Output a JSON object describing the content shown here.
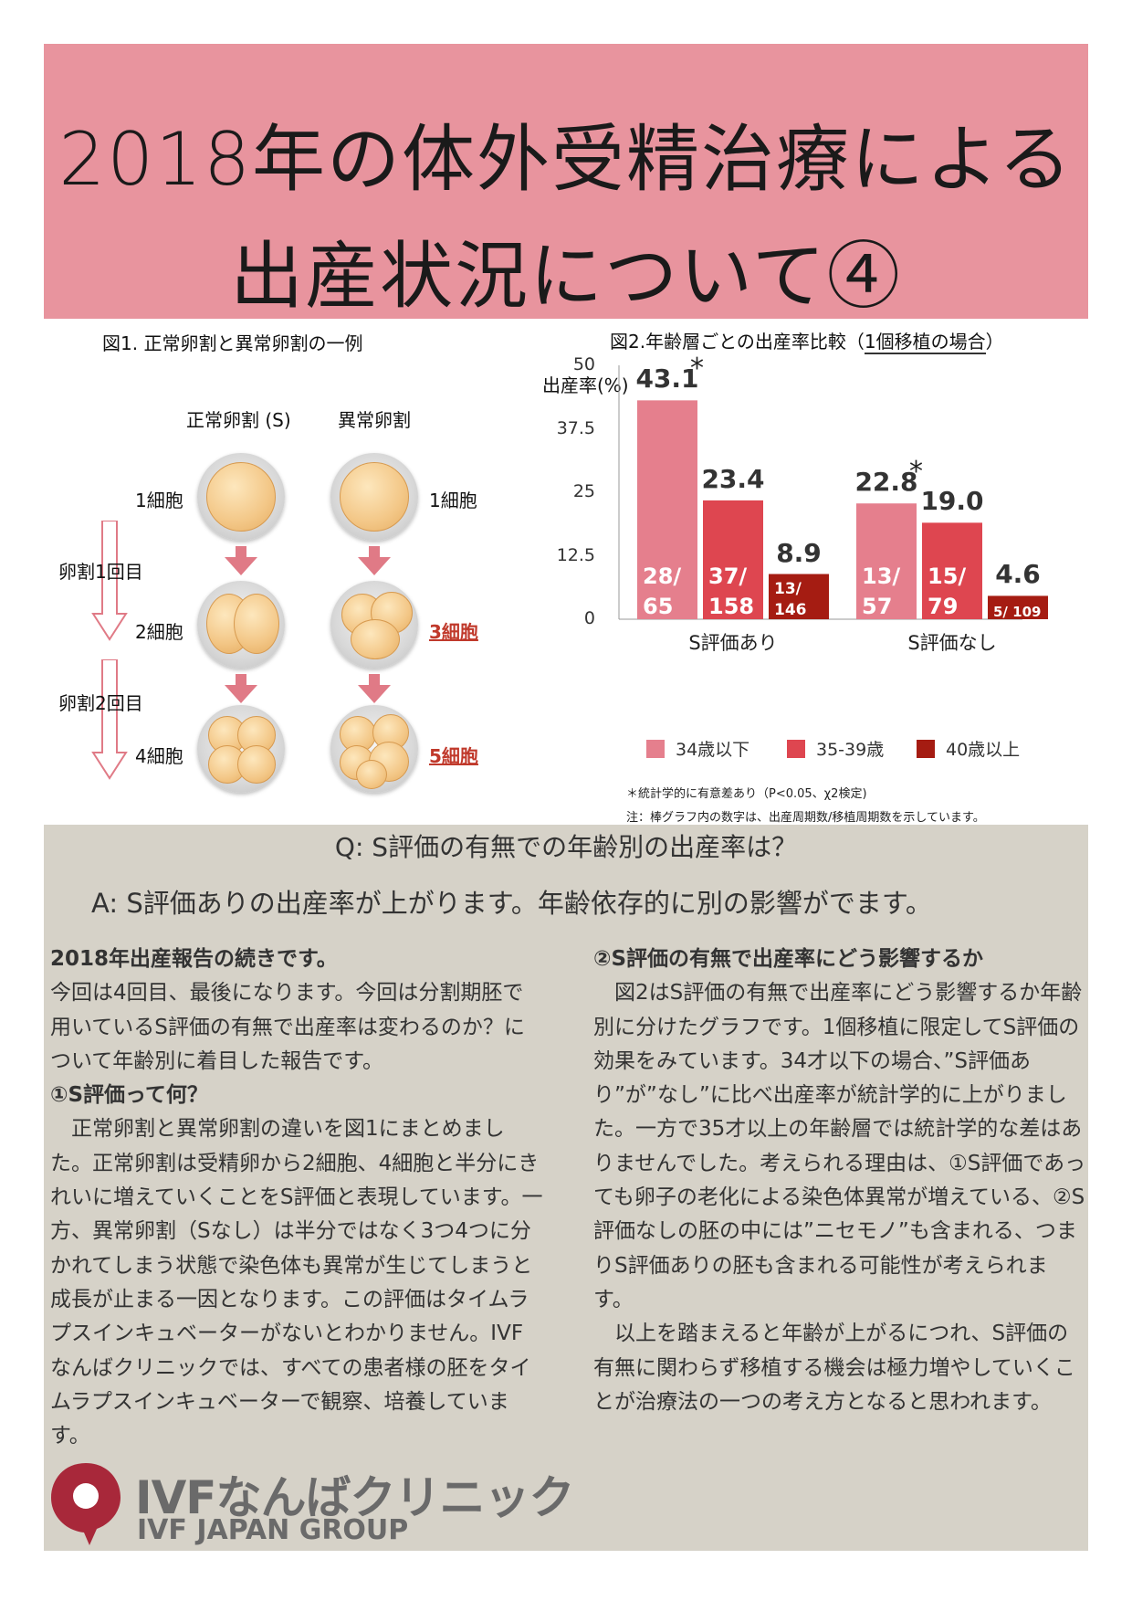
{
  "title": {
    "line1": "2018年の体外受精治療による",
    "line2": "出産状況について④"
  },
  "figure1": {
    "caption": "図1. 正常卵割と異常卵割の一例",
    "col_normal": "正常卵割 (S)",
    "col_abnormal": "異常卵割",
    "stage1_left": "1細胞",
    "stage1_right": "1細胞",
    "stage2_left": "2細胞",
    "stage2_right": "3細胞",
    "stage3_left": "4細胞",
    "stage3_right": "5細胞",
    "division1": "卵割1回目",
    "division2": "卵割2回目",
    "colors": {
      "arrow": "#e07a86",
      "cell": "#f3c787",
      "highlight": "#c0392b"
    }
  },
  "figure2": {
    "caption_prefix": "図2.年齢層ごとの出産率比較（",
    "caption_underlined": "1個移植の場合",
    "caption_suffix": "）",
    "note1": "＊統計学的に有意差あり（P<0.05、χ2検定)",
    "note2": "注：棒グラフ内の数字は、出産周期数/移植周期数を示しています。"
  },
  "chart_data": {
    "type": "bar",
    "ylabel": "出産率(%)",
    "ylim": [
      0,
      50
    ],
    "yticks": [
      "50",
      "37.5",
      "25",
      "12.5",
      "0"
    ],
    "categories": [
      "S評価あり",
      "S評価なし"
    ],
    "series": [
      {
        "name": "34歳以下",
        "color": "#e57f8d",
        "values": [
          43.1,
          22.8
        ],
        "labels": [
          "43.1",
          "22.8"
        ],
        "counts": [
          "28/\n65",
          "13/\n57"
        ],
        "significant": [
          true,
          true
        ]
      },
      {
        "name": "35-39歳",
        "color": "#de4650",
        "values": [
          23.4,
          19.0
        ],
        "labels": [
          "23.4",
          "19.0"
        ],
        "counts": [
          "37/\n158",
          "15/\n79"
        ],
        "significant": [
          false,
          false
        ]
      },
      {
        "name": "40歳以上",
        "color": "#a51c12",
        "values": [
          8.9,
          4.6
        ],
        "labels": [
          "8.9",
          "4.6"
        ],
        "counts": [
          "13/\n146",
          "5/ 109"
        ],
        "significant": [
          false,
          false
        ]
      }
    ],
    "significance_marker": "*",
    "grid": false,
    "legend_position": "bottom"
  },
  "qa": {
    "question": "Q: S評価の有無での年齢別の出産率は？",
    "answer": "A: S評価ありの出産率が上がります。年齢依存的に別の影響がでます。"
  },
  "left_column": {
    "heading": "2018年出産報告の続きです。",
    "para1": " 今回は4回目、最後になります。今回は分割期胚で用いているS評価の有無で出産率は変わるのか？について年齢別に着目した報告です。",
    "heading2": "①S評価って何？",
    "para2": "　正常卵割と異常卵割の違いを図1にまとめました。正常卵割は受精卵から2細胞、4細胞と半分にきれいに増えていくことをS評価と表現しています。一方、異常卵割（Sなし）は半分ではなく3つ4つに分かれてしまう状態で染色体も異常が生じてしまうと成長が止まる一因となります。この評価はタイムラプスインキュベーターがないとわかりません。IVFなんばクリニックでは、すべての患者様の胚をタイムラプスインキュベーターで観察、培養しています。"
  },
  "right_column": {
    "heading": "②S評価の有無で出産率にどう影響するか",
    "para1": "　図2はS評価の有無で出産率にどう影響するか年齢別に分けたグラフです。1個移植に限定してS評価の効果をみています。34才以下の場合、”S評価あり”が”なし”に比べ出産率が統計学的に上がりました。一方で35才以上の年齢層では統計学的な差はありませんでした。考えられる理由は、①S評価であっても卵子の老化による染色体異常が増えている、②S評価なしの胚の中には”ニセモノ”も含まれる、つまりS評価ありの胚も含まれる可能性が考えられます。",
    "para2": "　以上を踏まえると年齢が上がるにつれ、S評価の有無に関わらず移植する機会は極力増やしていくことが治療法の一つの考え方となると思われます。"
  },
  "logo": {
    "name": "IVFなんばクリニック",
    "group": "IVF JAPAN GROUP",
    "color": "#a8283a"
  },
  "colors": {
    "banner": "#e8949e",
    "panel": "#d6d2c8"
  }
}
